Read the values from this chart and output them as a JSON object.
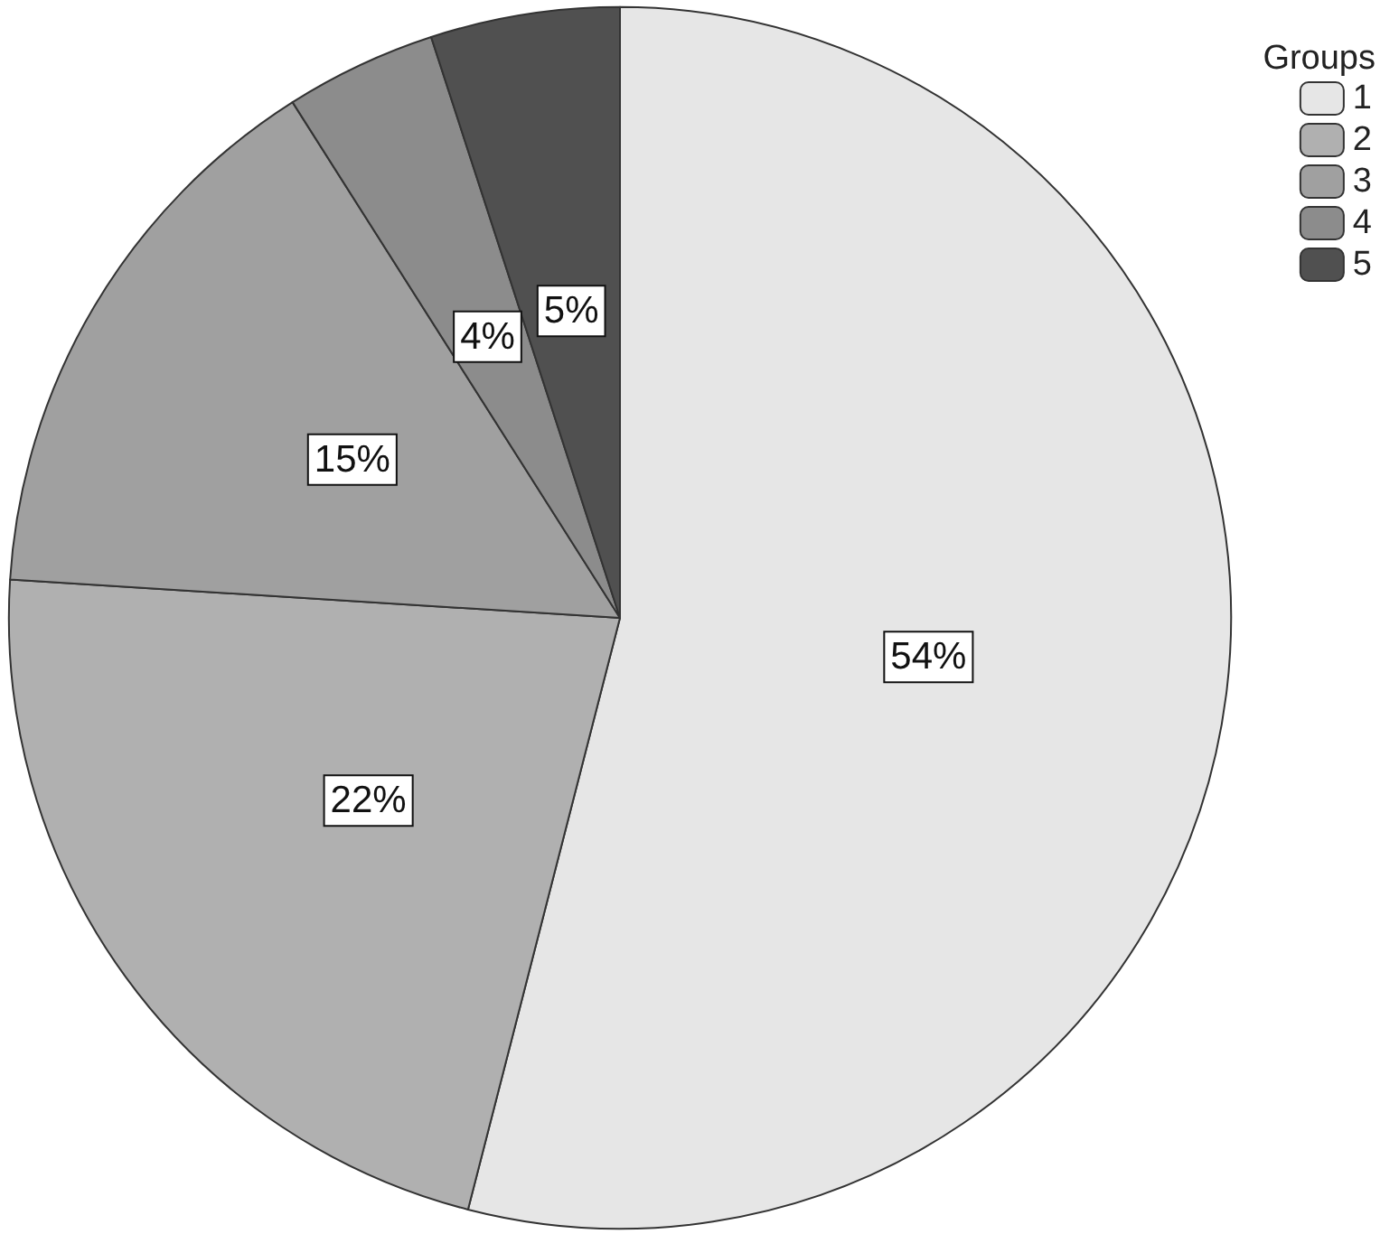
{
  "chart_data": {
    "type": "pie",
    "legend_title": "Groups",
    "legend": "top right",
    "categories": [
      "1",
      "2",
      "3",
      "4",
      "5"
    ],
    "values": [
      54,
      22,
      15,
      4,
      5
    ],
    "colors": [
      "#e6e6e6",
      "#b0b0b0",
      "#a0a0a0",
      "#8c8c8c",
      "#505050"
    ],
    "value_labels": [
      "54%",
      "22%",
      "15%",
      "4%",
      "5%"
    ]
  }
}
